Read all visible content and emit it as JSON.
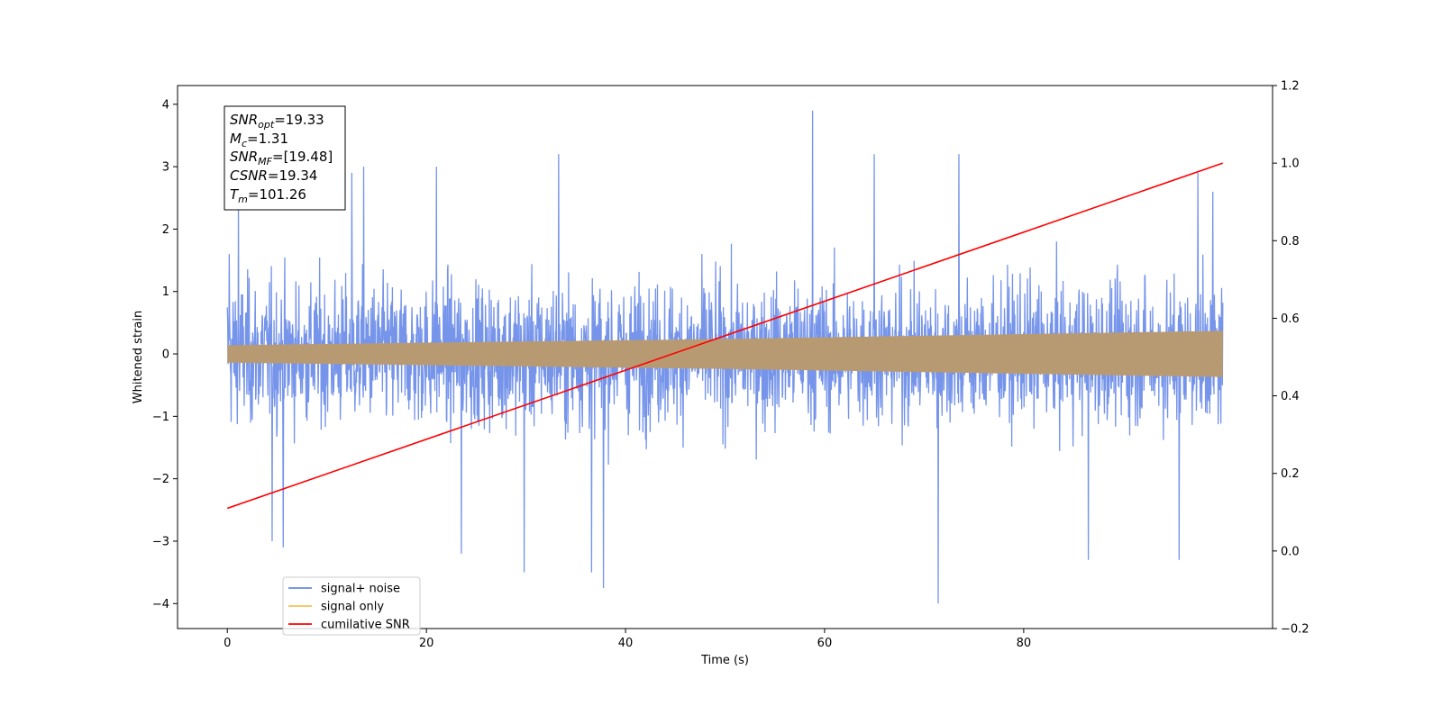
{
  "chart_data": {
    "type": "line",
    "title": "",
    "xlabel": "Time (s)",
    "ylabel": "Whitened strain",
    "ylabel_right": "",
    "xlim": [
      -5,
      105
    ],
    "ylim": [
      -4.4,
      4.3
    ],
    "ylim_right": [
      -0.2,
      1.2
    ],
    "xticks": [
      0,
      20,
      40,
      60,
      80
    ],
    "yticks": [
      -4,
      -3,
      -2,
      -1,
      0,
      1,
      2,
      3,
      4
    ],
    "yticks_right": [
      -0.2,
      0.0,
      0.2,
      0.4,
      0.6,
      0.8,
      1.0,
      1.2
    ],
    "xtick_labels": [
      "0",
      "20",
      "40",
      "60",
      "80"
    ],
    "ytick_labels": [
      "−4",
      "−3",
      "−2",
      "−1",
      "0",
      "1",
      "2",
      "3",
      "4"
    ],
    "ytick_labels_right": [
      "−0.2",
      "0.0",
      "0.2",
      "0.4",
      "0.6",
      "0.8",
      "1.0",
      "1.2"
    ],
    "grid": false,
    "legend_position": "lower-left",
    "series": [
      {
        "name": "signal+ noise",
        "color": "#6688e8",
        "axis": "left",
        "x_range": [
          0,
          100
        ],
        "typical_envelope": [
          -1.8,
          1.9
        ],
        "peaks": [
          {
            "x": 0.2,
            "y": 1.6
          },
          {
            "x": 1.1,
            "y": 2.4
          },
          {
            "x": 4.5,
            "y": -3.0
          },
          {
            "x": 5.6,
            "y": -3.1
          },
          {
            "x": 12.5,
            "y": 2.9
          },
          {
            "x": 13.7,
            "y": 3.0
          },
          {
            "x": 21.0,
            "y": 3.0
          },
          {
            "x": 23.5,
            "y": -3.2
          },
          {
            "x": 29.8,
            "y": -3.5
          },
          {
            "x": 33.3,
            "y": 3.2
          },
          {
            "x": 36.6,
            "y": -3.5
          },
          {
            "x": 37.8,
            "y": -3.75
          },
          {
            "x": 58.8,
            "y": 3.9
          },
          {
            "x": 65.0,
            "y": 3.2
          },
          {
            "x": 71.4,
            "y": -4.0
          },
          {
            "x": 73.5,
            "y": 3.2
          },
          {
            "x": 86.5,
            "y": -3.3
          },
          {
            "x": 95.6,
            "y": -3.3
          },
          {
            "x": 97.5,
            "y": 2.9
          },
          {
            "x": 99.0,
            "y": 2.6
          }
        ]
      },
      {
        "name": "signal only",
        "color": "#f5c35a",
        "axis": "left",
        "x_range": [
          0,
          100
        ],
        "amplitude": {
          "x": [
            0,
            50,
            100
          ],
          "y": [
            0.14,
            0.24,
            0.37
          ]
        }
      },
      {
        "name": "cumilative SNR",
        "color": "#ff0000",
        "axis": "right",
        "x": [
          0,
          100
        ],
        "y": [
          0.11,
          1.0
        ]
      }
    ],
    "annotation": {
      "lines": [
        {
          "var": "SNR",
          "sub": "opt",
          "value": "=19.33"
        },
        {
          "var": "M",
          "sub": "c",
          "value": "=1.31"
        },
        {
          "var": "SNR",
          "sub": "MF",
          "value": "=[19.48]"
        },
        {
          "var": "CSNR",
          "sub": "",
          "value": "=19.34"
        },
        {
          "var": "T",
          "sub": "m",
          "value": "=101.26"
        }
      ]
    }
  }
}
